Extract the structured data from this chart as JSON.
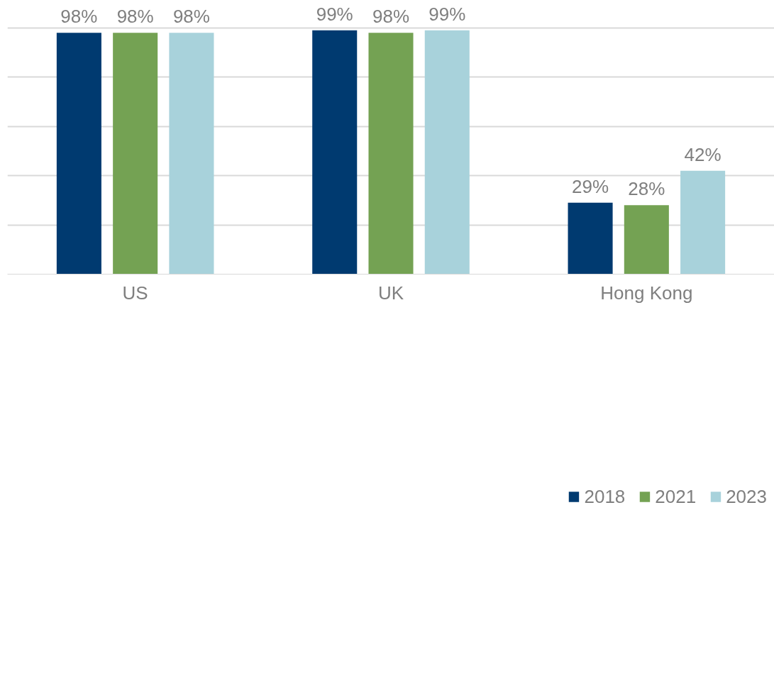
{
  "chart_data": {
    "type": "bar",
    "categories": [
      "US",
      "UK",
      "Hong Kong"
    ],
    "series": [
      {
        "name": "2018",
        "color": "#003a70",
        "values": [
          98,
          99,
          29
        ],
        "value_labels": [
          "98%",
          "99%",
          "29%"
        ]
      },
      {
        "name": "2021",
        "color": "#74a253",
        "values": [
          98,
          98,
          28
        ],
        "value_labels": [
          "98%",
          "98%",
          "28%"
        ]
      },
      {
        "name": "2023",
        "color": "#a8d2db",
        "values": [
          98,
          99,
          42
        ],
        "value_labels": [
          "98%",
          "99%",
          "42%"
        ]
      }
    ],
    "tick_labels": "x",
    "grid": "y",
    "legend": "bottom"
  }
}
